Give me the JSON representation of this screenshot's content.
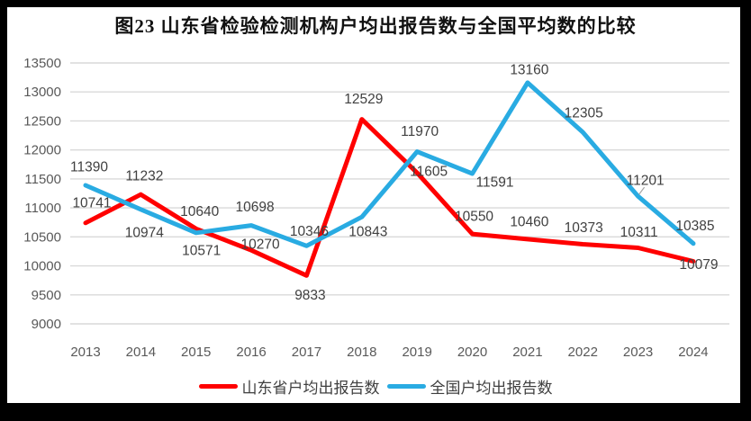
{
  "colors": {
    "frame_background": "#000000",
    "chart_background": "#FFFFFF",
    "gridline": "#D9D9D9",
    "axis_label": "#595959",
    "data_label": "#404040",
    "title": "#111111",
    "shandong_red": "#FF0000",
    "national_blue": "#29ABE2",
    "leader_line": "#A6A6A6"
  },
  "chart_data": {
    "type": "line",
    "title": "图23  山东省检验检测机构户均出报告数与全国平均数的比较",
    "categories": [
      "2013",
      "2014",
      "2015",
      "2016",
      "2017",
      "2018",
      "2019",
      "2020",
      "2021",
      "2022",
      "2023",
      "2024"
    ],
    "series": [
      {
        "name": "山东省户均出报告数",
        "color": "#FF0000",
        "values": [
          10741,
          11232,
          10640,
          10270,
          9833,
          12529,
          11605,
          10550,
          10460,
          10373,
          10311,
          10079
        ],
        "label_offsets": [
          [
            7,
            -23
          ],
          [
            4,
            -21
          ],
          [
            4,
            -20
          ],
          [
            10,
            -7
          ],
          [
            4,
            21
          ],
          [
            2,
            -23
          ],
          [
            13,
            -2
          ],
          [
            2,
            -20
          ],
          [
            2,
            -20
          ],
          [
            1,
            -19
          ],
          [
            1,
            -18
          ],
          [
            6,
            3
          ]
        ]
      },
      {
        "name": "全国户均出报告数",
        "color": "#29ABE2",
        "values": [
          11390,
          10974,
          10571,
          10698,
          10346,
          10843,
          11970,
          11591,
          13160,
          12305,
          11201,
          10385
        ],
        "label_offsets": [
          [
            4,
            -21
          ],
          [
            4,
            25
          ],
          [
            6,
            19
          ],
          [
            4,
            -21
          ],
          [
            3,
            -17
          ],
          [
            7,
            16
          ],
          [
            3,
            -23
          ],
          [
            25,
            9
          ],
          [
            2,
            -15
          ],
          [
            1,
            -22
          ],
          [
            8,
            -18
          ],
          [
            2,
            -20
          ]
        ],
        "leader_line_at": "2023"
      }
    ],
    "xlabel": "",
    "ylabel": "",
    "ylim": [
      9000,
      13500
    ],
    "ytick_step": 500,
    "grid": true,
    "legend_position": "bottom-center"
  }
}
